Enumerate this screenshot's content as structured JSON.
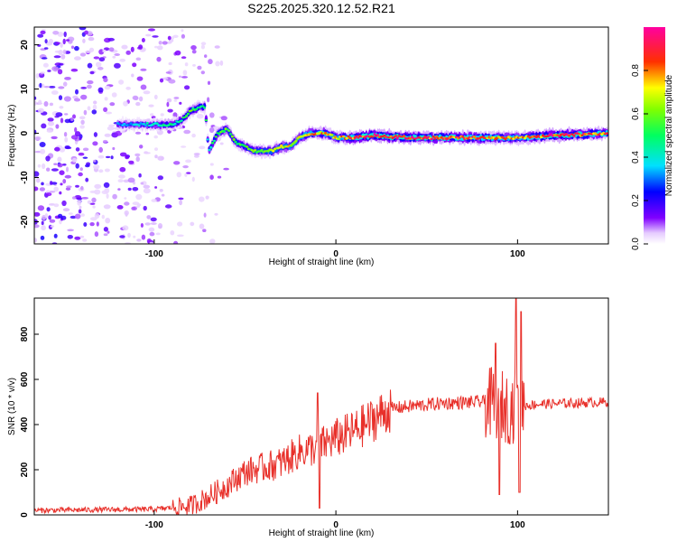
{
  "title": "S225.2025.320.12.52.R21",
  "colors": {
    "snr_line": "#e8302a",
    "frame": "#000000",
    "background": "#ffffff"
  },
  "chart_data": [
    {
      "type": "heatmap",
      "title": "S225.2025.320.12.52.R21",
      "xlabel": "Height of straight line (km)",
      "ylabel": "Frequency (Hz)",
      "xlim": [
        -166,
        150
      ],
      "ylim": [
        -25,
        24
      ],
      "xticks": [
        -100,
        0,
        100
      ],
      "yticks": [
        -20,
        -10,
        0,
        10,
        20
      ],
      "colorbar": {
        "label": "Normalized spectral amplitude",
        "range": [
          0,
          1
        ],
        "ticks": [
          0.0,
          0.2,
          0.4,
          0.6,
          0.8
        ],
        "colormap": "rainbow (white → violet → blue → cyan → green → yellow → red → magenta)",
        "placement": "right"
      },
      "ridge": {
        "x": [
          -120,
          -110,
          -100,
          -90,
          -85,
          -80,
          -75,
          -72,
          -70,
          -65,
          -60,
          -55,
          -50,
          -45,
          -40,
          -35,
          -30,
          -25,
          -20,
          -15,
          -10,
          -5,
          0,
          10,
          20,
          40,
          60,
          80,
          100,
          120,
          150
        ],
        "y": [
          2,
          2,
          2,
          2,
          3,
          5,
          6,
          6,
          -4,
          0,
          1,
          -2,
          -3,
          -4,
          -4,
          -4,
          -3,
          -3,
          -1,
          0,
          0,
          0,
          -1,
          -1,
          -0.5,
          -1,
          -1,
          -1,
          -1,
          -0.5,
          0
        ],
        "amplitude": [
          0.3,
          0.35,
          0.4,
          0.45,
          0.5,
          0.55,
          0.5,
          0.5,
          0.4,
          0.55,
          0.6,
          0.55,
          0.55,
          0.6,
          0.6,
          0.65,
          0.65,
          0.7,
          0.7,
          0.75,
          0.8,
          0.75,
          0.7,
          0.85,
          0.9,
          0.9,
          0.85,
          0.8,
          0.75,
          0.9,
          0.8
        ]
      },
      "noise_extent": [
        -166,
        -60
      ]
    },
    {
      "type": "line",
      "xlabel": "Height of straight line (km)",
      "ylabel": "SNR (10 * v/v)",
      "xlim": [
        -166,
        150
      ],
      "ylim": [
        0,
        960
      ],
      "xticks": [
        -100,
        0,
        100
      ],
      "yticks": [
        0,
        200,
        400,
        600,
        800
      ],
      "trend": {
        "x": [
          -166,
          -100,
          -80,
          -70,
          -60,
          -50,
          -40,
          -30,
          -20,
          -10,
          0,
          10,
          20,
          30,
          40,
          60,
          80,
          90,
          95,
          100,
          110,
          130,
          150
        ],
        "y": [
          20,
          25,
          40,
          80,
          130,
          190,
          210,
          230,
          280,
          300,
          340,
          370,
          420,
          470,
          480,
          495,
          500,
          490,
          470,
          480,
          490,
          495,
          500
        ]
      },
      "spikes": [
        {
          "x": -10,
          "y": 540
        },
        {
          "x": -9,
          "y": 30
        },
        {
          "x": 88,
          "y": 760
        },
        {
          "x": 90,
          "y": 90
        },
        {
          "x": 99,
          "y": 960
        },
        {
          "x": 101,
          "y": 100
        },
        {
          "x": 102,
          "y": 900
        }
      ]
    }
  ]
}
